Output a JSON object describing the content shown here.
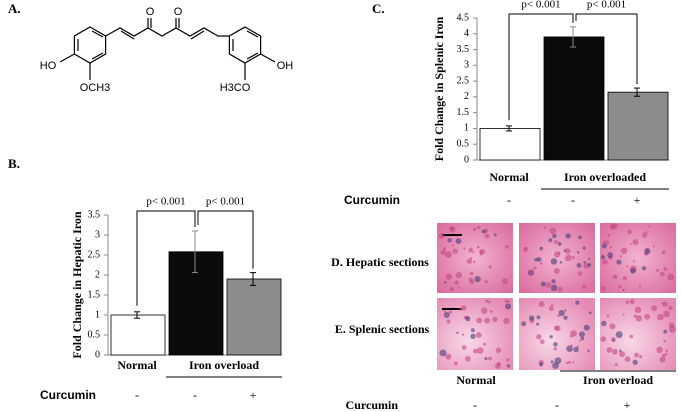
{
  "panel_labels": [
    "A.",
    "B.",
    "C."
  ],
  "structure": {
    "labels": [
      "O",
      "O",
      "HO",
      "OCH3",
      "H3CO",
      "OH"
    ]
  },
  "chart_data": [
    {
      "type": "bar",
      "y_label": "Fold Change in Hepatic Iron",
      "categories": [
        "Normal",
        null,
        null
      ],
      "group_label": "Iron overload",
      "values": [
        1.0,
        2.58,
        1.9
      ],
      "errors": [
        0.08,
        0.52,
        0.16
      ],
      "colors": [
        "#ffffff",
        "#0a0a0a",
        "#8c8c8c"
      ],
      "ylim": [
        0,
        3.5
      ],
      "yticks": [
        0,
        0.5,
        1,
        1.5,
        2,
        2.5,
        3,
        3.5
      ],
      "annotations": [
        "p< 0.001",
        "p< 0.001"
      ],
      "treatment_label": "Curcumin",
      "treatment": [
        "-",
        "-",
        "+"
      ]
    },
    {
      "type": "bar",
      "y_label": "Fold Change in Splenic Iron",
      "categories": [
        "Normal",
        null,
        null
      ],
      "group_label": "Iron overloaded",
      "values": [
        1.0,
        3.9,
        2.15
      ],
      "errors": [
        0.08,
        0.32,
        0.13
      ],
      "colors": [
        "#ffffff",
        "#0a0a0a",
        "#8c8c8c"
      ],
      "ylim": [
        0,
        4.5
      ],
      "yticks": [
        0,
        0.5,
        1,
        1.5,
        2,
        2.5,
        3,
        3.5,
        4,
        4.5
      ],
      "annotations": [
        "p< 0.001",
        "p< 0.001"
      ],
      "treatment_label": "Curcumin",
      "treatment": [
        "-",
        "-",
        "+"
      ]
    }
  ],
  "micrographs": {
    "rows": [
      "D. Hepatic sections",
      "E. Splenic sections"
    ],
    "normal_label": "Normal",
    "group_label": "Iron overload",
    "treatment_label": "Curcumin",
    "treatment": [
      "-",
      "-",
      "+"
    ]
  }
}
